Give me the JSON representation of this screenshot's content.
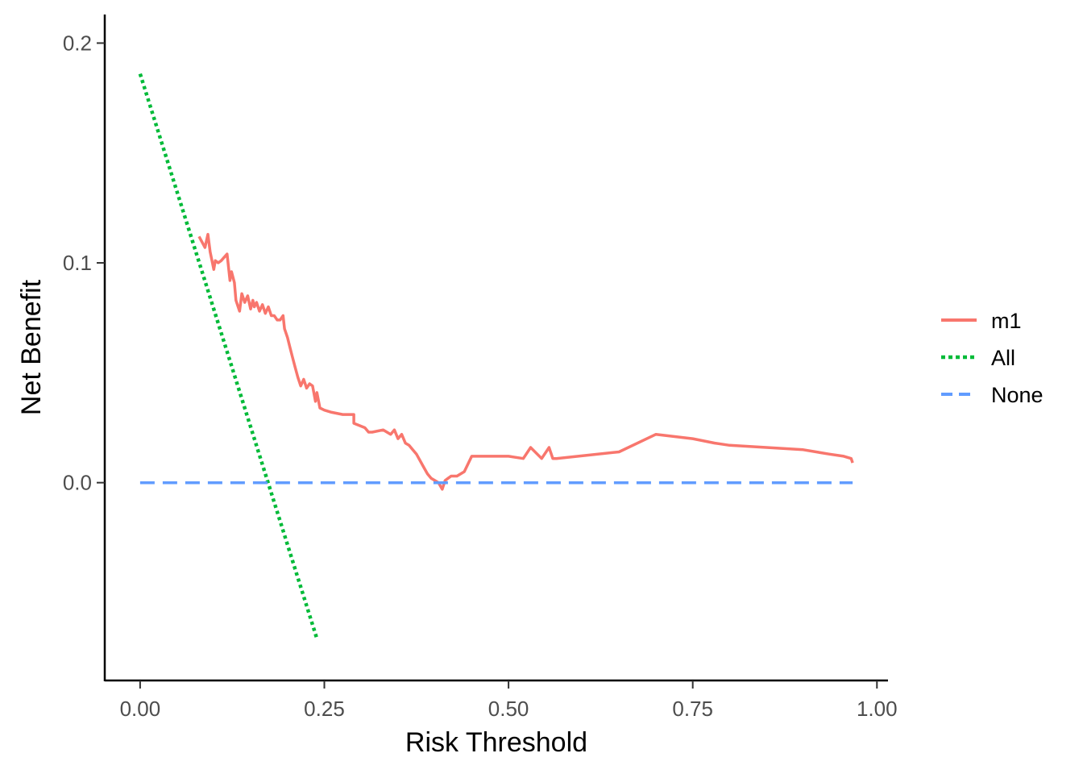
{
  "chart_data": {
    "type": "line",
    "title": "",
    "xlabel": "Risk Threshold",
    "ylabel": "Net Benefit",
    "xlim": [
      -0.048,
      1.015
    ],
    "ylim": [
      -0.09,
      0.213
    ],
    "x_ticks": [
      0.0,
      0.25,
      0.5,
      0.75,
      1.0
    ],
    "x_tick_labels": [
      "0.00",
      "0.25",
      "0.50",
      "0.75",
      "1.00"
    ],
    "y_ticks": [
      0.0,
      0.1,
      0.2
    ],
    "y_tick_labels": [
      "0.0",
      "0.1",
      "0.2"
    ],
    "grid": false,
    "legend_position": "right",
    "series": [
      {
        "name": "m1",
        "color": "#F8766D",
        "dash": "solid",
        "x": [
          0.08,
          0.088,
          0.092,
          0.095,
          0.1,
          0.102,
          0.106,
          0.11,
          0.118,
          0.122,
          0.124,
          0.128,
          0.13,
          0.135,
          0.138,
          0.142,
          0.146,
          0.15,
          0.153,
          0.155,
          0.158,
          0.162,
          0.166,
          0.17,
          0.174,
          0.178,
          0.182,
          0.186,
          0.19,
          0.194,
          0.196,
          0.2,
          0.203,
          0.206,
          0.21,
          0.214,
          0.218,
          0.222,
          0.226,
          0.23,
          0.234,
          0.238,
          0.24,
          0.244,
          0.25,
          0.26,
          0.275,
          0.29,
          0.29,
          0.305,
          0.31,
          0.315,
          0.33,
          0.34,
          0.345,
          0.35,
          0.355,
          0.36,
          0.365,
          0.375,
          0.385,
          0.39,
          0.395,
          0.4,
          0.405,
          0.41,
          0.414,
          0.418,
          0.422,
          0.43,
          0.44,
          0.45,
          0.46,
          0.5,
          0.52,
          0.53,
          0.545,
          0.555,
          0.56,
          0.565,
          0.65,
          0.7,
          0.75,
          0.78,
          0.8,
          0.9,
          0.935,
          0.955,
          0.965,
          0.967
        ],
        "values": [
          0.112,
          0.107,
          0.113,
          0.105,
          0.097,
          0.101,
          0.1,
          0.101,
          0.104,
          0.092,
          0.096,
          0.091,
          0.083,
          0.078,
          0.086,
          0.082,
          0.085,
          0.079,
          0.083,
          0.08,
          0.082,
          0.078,
          0.081,
          0.077,
          0.08,
          0.076,
          0.076,
          0.074,
          0.074,
          0.076,
          0.07,
          0.066,
          0.062,
          0.058,
          0.053,
          0.048,
          0.044,
          0.047,
          0.043,
          0.045,
          0.044,
          0.037,
          0.041,
          0.034,
          0.033,
          0.032,
          0.031,
          0.031,
          0.027,
          0.025,
          0.023,
          0.023,
          0.024,
          0.022,
          0.024,
          0.02,
          0.022,
          0.018,
          0.017,
          0.013,
          0.007,
          0.004,
          0.002,
          0.001,
          0.0,
          -0.003,
          0.001,
          0.002,
          0.003,
          0.003,
          0.005,
          0.012,
          0.012,
          0.012,
          0.011,
          0.016,
          0.011,
          0.016,
          0.011,
          0.011,
          0.014,
          0.022,
          0.02,
          0.018,
          0.017,
          0.015,
          0.013,
          0.012,
          0.011,
          0.009
        ]
      },
      {
        "name": "All",
        "color": "#00BA38",
        "dash": "dotted",
        "x": [
          0.0,
          0.24
        ],
        "values": [
          0.186,
          -0.071
        ]
      },
      {
        "name": "None",
        "color": "#619CFF",
        "dash": "dashed",
        "x": [
          0.0,
          0.967
        ],
        "values": [
          0.0,
          0.0
        ]
      }
    ]
  }
}
